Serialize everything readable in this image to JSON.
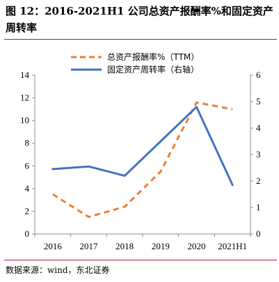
{
  "figure": {
    "title": "图 12：2016-2021H1 公司总资产报酬率%和固定资产周转率",
    "source": "数据来源：wind，东北证券"
  },
  "chart_data": {
    "type": "line",
    "x": [
      "2016",
      "2017",
      "2018",
      "2019",
      "2020",
      "2021H1"
    ],
    "series": [
      {
        "name": "总资产报酬率%（TTM）",
        "axis": "left",
        "style": "dashed",
        "color": "#ED7D31",
        "values": [
          3.5,
          1.5,
          2.4,
          5.5,
          11.6,
          11.0
        ]
      },
      {
        "name": "固定资产周转率（右轴）",
        "axis": "right",
        "style": "solid",
        "color": "#4472C4",
        "values": [
          2.45,
          2.55,
          2.2,
          3.5,
          4.8,
          1.85
        ]
      }
    ],
    "yleft": {
      "lim": [
        0,
        14
      ],
      "ticks": [
        "0",
        "2",
        "4",
        "6",
        "8",
        "10",
        "12",
        "14"
      ]
    },
    "yright": {
      "lim": [
        0,
        6
      ],
      "ticks": [
        "0",
        "1",
        "2",
        "3",
        "4",
        "5",
        "6"
      ]
    },
    "grid": false,
    "legend": "top-center"
  }
}
